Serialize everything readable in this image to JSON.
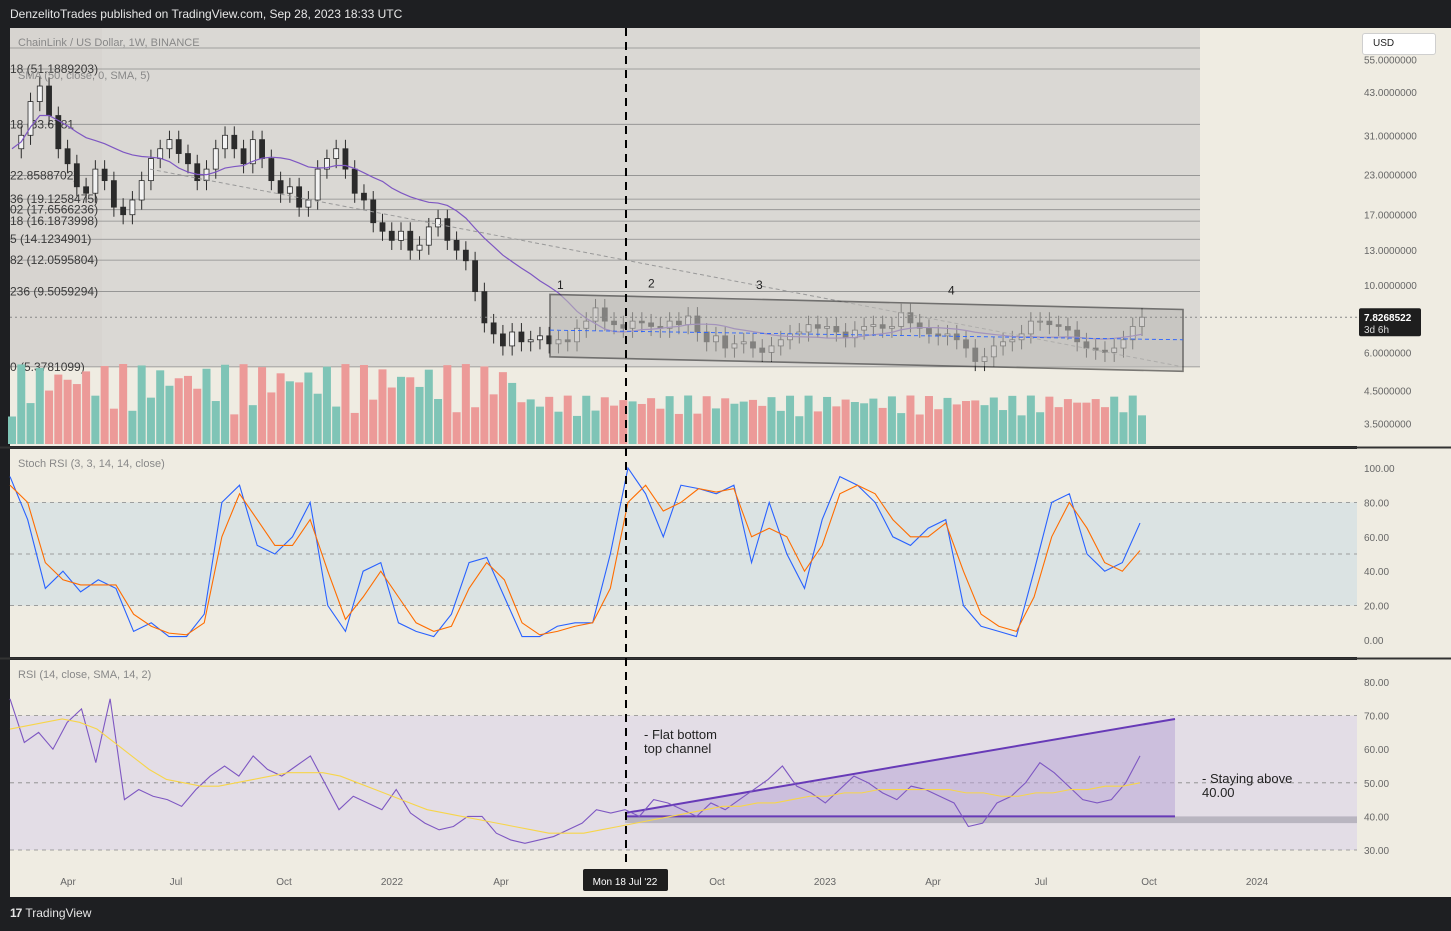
{
  "header": {
    "published": "DenzelitoTrades published on TradingView.com, Sep 28, 2023 18:33 UTC",
    "brand": "TradingView"
  },
  "price_pane": {
    "symbol_line": "ChainLink / US Dollar, 1W, BINANCE",
    "sma_line": "SMA (50, close, 0, SMA, 5)",
    "currency": "USD",
    "current_price": "7.8268522",
    "countdown": "3d 6h",
    "fib_labels": [
      "18 (51.1889203)",
      "18 (33.6781",
      "22.8588702)",
      "36 (19.1258475)",
      "02 (17.6566236)",
      "18 (16.1873998)",
      "5 (14.1234901)",
      "82 (12.0595804)",
      "236 (9.5059294)",
      "0 (5.3781099)"
    ],
    "wave_labels": [
      "1",
      "2",
      "3",
      "4"
    ],
    "axis_ticks": [
      "55.0000000",
      "43.0000000",
      "31.0000000",
      "23.0000000",
      "17.0000000",
      "13.0000000",
      "10.0000000",
      "6.0000000",
      "4.5000000",
      "3.5000000"
    ]
  },
  "stoch_pane": {
    "title": "Stoch RSI (3, 3, 14, 14, close)",
    "axis_ticks": [
      "100.00",
      "80.00",
      "60.00",
      "40.00",
      "20.00",
      "0.00"
    ]
  },
  "rsi_pane": {
    "title": "RSI (14, close, SMA, 14, 2)",
    "axis_ticks": [
      "80.00",
      "70.00",
      "60.00",
      "50.00",
      "40.00",
      "30.00"
    ],
    "annotation_left": [
      "- Flat bottom",
      "top channel"
    ],
    "annotation_right": [
      "- Staying above",
      "40.00"
    ]
  },
  "time_axis": {
    "labels": [
      "Apr",
      "Jul",
      "Oct",
      "2022",
      "Apr",
      "Oct",
      "2023",
      "Apr",
      "Jul",
      "Oct",
      "2024"
    ],
    "crosshair_label": "Mon 18 Jul '22"
  },
  "colors": {
    "background": "#efece2",
    "up": "#26a69a",
    "down": "#ef5350",
    "sma": "#7e57c2",
    "stoch_k": "#2962ff",
    "stoch_d": "#ff6d00",
    "rsi_line": "#7e57c2",
    "rsi_ma": "#f7d54a"
  },
  "chart_data": [
    {
      "type": "candlestick",
      "title": "ChainLink / US Dollar, 1W, BINANCE",
      "yscale": "log",
      "ylim": [
        3.0,
        60.0
      ],
      "x_range": [
        "2021-03",
        "2024-01"
      ],
      "close_series": [
        28,
        31,
        40,
        45,
        36,
        28,
        25,
        21,
        20,
        24,
        22,
        18,
        17,
        19,
        22,
        26,
        28,
        30,
        27,
        25,
        22,
        24,
        28,
        31,
        28,
        25,
        30,
        26,
        22,
        20,
        21,
        18,
        19,
        24,
        26,
        28,
        24,
        20,
        19,
        16,
        15,
        14,
        15,
        13,
        13.5,
        15.5,
        16.5,
        14,
        13,
        12,
        9.5,
        7.5,
        6.9,
        6.3,
        7,
        6.5,
        6.6,
        6.8,
        6.4,
        6.6,
        6.5,
        7.2,
        7.6,
        8.4,
        7.6,
        7.4,
        7.2,
        7.6,
        7.5,
        7.3,
        7.2,
        7.6,
        7.4,
        7.9,
        7,
        6.5,
        6.8,
        6.2,
        6.4,
        6.5,
        6.2,
        6,
        6.3,
        6.6,
        6.9,
        7,
        7.4,
        7.2,
        7.3,
        7,
        6.7,
        7.1,
        7.3,
        7.4,
        7.2,
        7.3,
        8.1,
        7.5,
        7.2,
        6.9,
        6.8,
        6.9,
        6.6,
        6.2,
        5.6,
        5.8,
        6.3,
        6.5,
        6.6,
        6.9,
        7.6,
        7.6,
        7.4,
        7.3,
        7.1,
        6.5,
        6.2,
        6.1,
        6.0,
        6.2,
        6.6,
        7.3,
        7.83
      ],
      "current_price": 7.8268522,
      "channel": {
        "top_left": 9.3,
        "top_right": 8.3,
        "bottom_left": 5.8,
        "bottom_right": 5.2
      }
    },
    {
      "type": "line",
      "title": "Stoch RSI (3, 3, 14, 14, close)",
      "ylim": [
        0,
        100
      ],
      "series": [
        {
          "name": "K",
          "values": [
            95,
            70,
            30,
            40,
            28,
            35,
            30,
            5,
            10,
            2,
            2,
            15,
            80,
            90,
            55,
            50,
            60,
            80,
            20,
            5,
            40,
            45,
            10,
            5,
            2,
            15,
            45,
            48,
            25,
            2,
            2,
            8,
            10,
            10,
            50,
            100,
            85,
            60,
            90,
            88,
            85,
            90,
            45,
            80,
            50,
            30,
            70,
            95,
            90,
            80,
            60,
            55,
            65,
            70,
            20,
            8,
            5,
            2,
            40,
            80,
            85,
            50,
            40,
            45,
            68
          ]
        },
        {
          "name": "D",
          "values": [
            90,
            80,
            45,
            35,
            32,
            32,
            32,
            15,
            8,
            4,
            3,
            10,
            60,
            85,
            70,
            55,
            55,
            70,
            40,
            12,
            25,
            40,
            25,
            10,
            5,
            8,
            30,
            45,
            35,
            10,
            3,
            5,
            8,
            10,
            30,
            80,
            90,
            75,
            80,
            88,
            86,
            88,
            60,
            65,
            60,
            40,
            55,
            85,
            90,
            85,
            70,
            60,
            60,
            68,
            40,
            15,
            8,
            5,
            25,
            60,
            80,
            65,
            45,
            40,
            52
          ]
        }
      ]
    },
    {
      "type": "line",
      "title": "RSI (14, close, SMA, 14, 2)",
      "ylim": [
        30,
        80
      ],
      "series": [
        {
          "name": "RSI",
          "values": [
            75,
            62,
            65,
            60,
            68,
            72,
            56,
            75,
            45,
            48,
            46,
            45,
            43,
            48,
            52,
            55,
            52,
            58,
            54,
            52,
            55,
            58,
            50,
            42,
            46,
            44,
            42,
            48,
            41,
            38,
            36,
            37,
            40,
            40,
            35,
            33,
            32,
            33,
            34,
            36,
            38,
            42,
            41,
            42,
            40,
            45,
            44,
            42,
            40,
            44,
            42,
            45,
            48,
            51,
            55,
            49,
            47,
            44,
            48,
            52,
            50,
            47,
            45,
            49,
            48,
            46,
            44,
            37,
            38,
            44,
            46,
            50,
            56,
            53,
            49,
            45,
            44,
            45,
            50,
            58
          ]
        },
        {
          "name": "RSI MA",
          "values": [
            66,
            67,
            68,
            69,
            68,
            66,
            62,
            58,
            54,
            51,
            50,
            49,
            49,
            50,
            51,
            52,
            53,
            53,
            53,
            52,
            50,
            48,
            46,
            44,
            42,
            41,
            40,
            39,
            38,
            37,
            36,
            35,
            35,
            35,
            36,
            37,
            38,
            39,
            40,
            41,
            42,
            43,
            43,
            44,
            44,
            45,
            46,
            46,
            47,
            47,
            48,
            48,
            48,
            48,
            48,
            47,
            47,
            46,
            46,
            47,
            47,
            48,
            48,
            49,
            49,
            50
          ]
        }
      ],
      "channel": {
        "upper_start": 41,
        "upper_end": 69,
        "lower": 40
      }
    }
  ]
}
